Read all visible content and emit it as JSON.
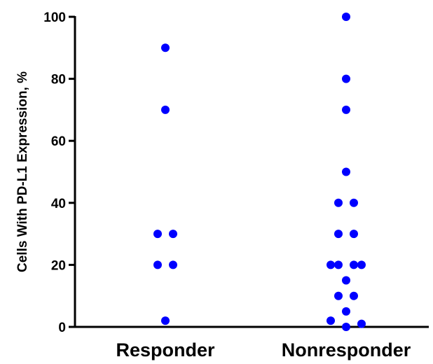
{
  "chart_data": {
    "type": "scatter",
    "title": "",
    "xlabel": "",
    "ylabel": "Cells With PD-L1 Expression, %",
    "categories": [
      "Responder",
      "Nonresponder"
    ],
    "ylim": [
      0,
      100
    ],
    "yticks": [
      "0",
      "20",
      "40",
      "60",
      "80",
      "100"
    ],
    "grid": false,
    "marker_color": "#0000ff",
    "axis_color": "#000000",
    "series": [
      {
        "category": "Responder",
        "points": [
          {
            "offset": 0,
            "y": 90
          },
          {
            "offset": 0,
            "y": 70
          },
          {
            "offset": -1,
            "y": 30
          },
          {
            "offset": 1,
            "y": 30
          },
          {
            "offset": -1,
            "y": 20
          },
          {
            "offset": 1,
            "y": 20
          },
          {
            "offset": 0,
            "y": 2
          }
        ]
      },
      {
        "category": "Nonresponder",
        "points": [
          {
            "offset": 0,
            "y": 100
          },
          {
            "offset": 0,
            "y": 80
          },
          {
            "offset": 0,
            "y": 70
          },
          {
            "offset": 0,
            "y": 50
          },
          {
            "offset": -1,
            "y": 40
          },
          {
            "offset": 1,
            "y": 40
          },
          {
            "offset": -1,
            "y": 30
          },
          {
            "offset": 1,
            "y": 30
          },
          {
            "offset": -2,
            "y": 20
          },
          {
            "offset": -1,
            "y": 20
          },
          {
            "offset": 1,
            "y": 20
          },
          {
            "offset": 2,
            "y": 20
          },
          {
            "offset": 0,
            "y": 15
          },
          {
            "offset": -1,
            "y": 10
          },
          {
            "offset": 1,
            "y": 10
          },
          {
            "offset": 0,
            "y": 5
          },
          {
            "offset": -2,
            "y": 2
          },
          {
            "offset": 0,
            "y": 0
          },
          {
            "offset": 2,
            "y": 1
          }
        ]
      }
    ]
  }
}
